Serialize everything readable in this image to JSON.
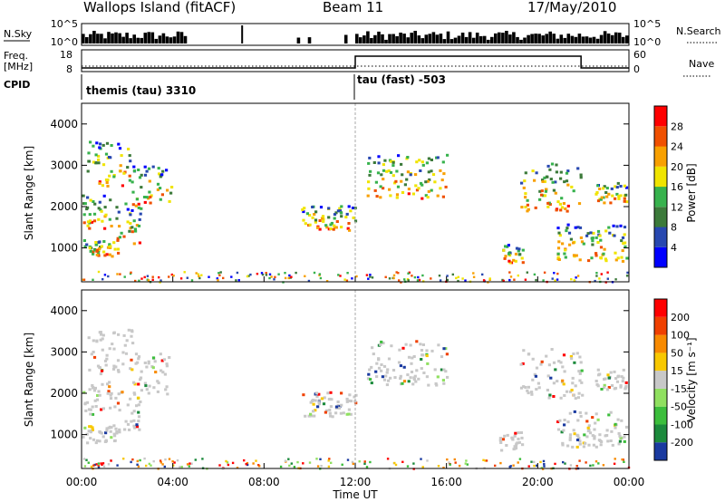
{
  "header": {
    "station": "Wallops Island (fitACF)",
    "beam": "Beam 11",
    "date": "17/May/2010"
  },
  "strip": {
    "nsky_label": "N.Sky",
    "nsky_ticks": [
      "10^5",
      "10^0"
    ],
    "nsearch_label": "N.Search",
    "nsearch_ticks": [
      "10^5",
      "10^0"
    ],
    "freq_label_1": "Freq.",
    "freq_label_2": "[MHz]",
    "freq_ticks": [
      "18",
      "8"
    ],
    "nave_label": "Nave",
    "nave_ticks": [
      "60",
      "0"
    ],
    "cpid_label": "CPID",
    "cpid_1": "themis (tau) 3310",
    "cpid_2": "tau (fast) -503"
  },
  "chart_data": {
    "type": "heatmap",
    "x_ticks": [
      "00:00",
      "04:00",
      "08:00",
      "12:00",
      "16:00",
      "20:00",
      "00:00"
    ],
    "xlabel": "Time UT",
    "x_range_hours": [
      0,
      24
    ],
    "cpid_change_hour": 12.0,
    "nave_level": {
      "before_change": 8,
      "after_change": 55,
      "return_hour": 21.9
    },
    "panels": [
      {
        "name": "power",
        "ylabel": "Slant Range [km]",
        "y_ticks": [
          "1000",
          "2000",
          "3000",
          "4000"
        ],
        "y_range_km": [
          180,
          4500
        ],
        "colorbar_label": "Power [dB]",
        "colorbar_ticks": [
          "28",
          "24",
          "20",
          "16",
          "12",
          "8",
          "4"
        ],
        "colors": [
          "#0000ff",
          "#2848b0",
          "#3c7a3a",
          "#37b24d",
          "#f0e400",
          "#f8a000",
          "#f05000",
          "#ff0000"
        ]
      },
      {
        "name": "velocity",
        "ylabel": "Slant Range [km]",
        "y_ticks": [
          "1000",
          "2000",
          "3000",
          "4000"
        ],
        "y_range_km": [
          180,
          4500
        ],
        "colorbar_label": "Velocity [m s⁻¹]",
        "colorbar_ticks": [
          "200",
          "100",
          "50",
          "15",
          "-15",
          "-50",
          "-100",
          "-200"
        ],
        "colors": [
          "#1a3aa0",
          "#1c8a3c",
          "#3cbe3c",
          "#90e060",
          "#c8c8c8",
          "#f8c800",
          "#f88a00",
          "#f04000",
          "#ff0000"
        ]
      }
    ],
    "echo_regions": [
      {
        "t0": 0.0,
        "t1": 1.6,
        "r0": 820,
        "r1": 1250
      },
      {
        "t0": 1.4,
        "t1": 2.6,
        "r0": 1100,
        "r1": 2100
      },
      {
        "t0": 2.2,
        "t1": 3.9,
        "r0": 2000,
        "r1": 3000
      },
      {
        "t0": 0.0,
        "t1": 1.3,
        "r0": 1500,
        "r1": 2300
      },
      {
        "t0": 0.2,
        "t1": 2.2,
        "r0": 2500,
        "r1": 3600
      },
      {
        "t0": 9.6,
        "t1": 12.0,
        "r0": 1450,
        "r1": 2050
      },
      {
        "t0": 12.5,
        "t1": 16.0,
        "r0": 2200,
        "r1": 3300
      },
      {
        "t0": 18.3,
        "t1": 19.3,
        "r0": 650,
        "r1": 1100
      },
      {
        "t0": 19.2,
        "t1": 21.9,
        "r0": 1900,
        "r1": 3100
      },
      {
        "t0": 20.8,
        "t1": 23.9,
        "r0": 700,
        "r1": 1600
      },
      {
        "t0": 22.5,
        "t1": 23.9,
        "r0": 2100,
        "r1": 2600
      }
    ]
  }
}
